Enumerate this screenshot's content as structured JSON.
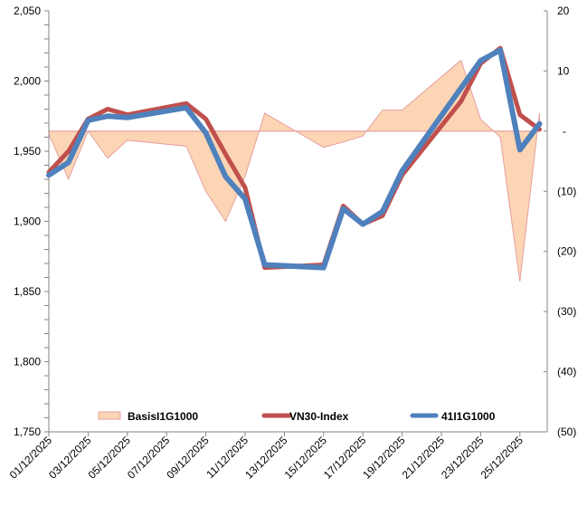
{
  "chart_data": {
    "type": "line",
    "title": "",
    "x": [
      "01/12/2025",
      "02/12/2025",
      "03/12/2025",
      "04/12/2025",
      "05/12/2025",
      "08/12/2025",
      "09/12/2025",
      "10/12/2025",
      "11/12/2025",
      "12/12/2025",
      "15/12/2025",
      "16/12/2025",
      "17/12/2025",
      "18/12/2025",
      "19/12/2025",
      "22/12/2025",
      "23/12/2025",
      "24/12/2025",
      "25/12/2025",
      "26/12/2025"
    ],
    "x_day_index": [
      0,
      1,
      2,
      3,
      4,
      7,
      8,
      9,
      10,
      11,
      14,
      15,
      16,
      17,
      18,
      21,
      22,
      23,
      24,
      25
    ],
    "x_tick_labels": [
      "01/12/2025",
      "03/12/2025",
      "05/12/2025",
      "07/12/2025",
      "09/12/2025",
      "11/12/2025",
      "13/12/2025",
      "15/12/2025",
      "17/12/2025",
      "19/12/2025",
      "21/12/2025",
      "23/12/2025",
      "25/12/2025"
    ],
    "y_left": {
      "ylim": [
        1750,
        2050
      ],
      "ticks": [
        "1,750",
        "1,800",
        "1,850",
        "1,900",
        "1,950",
        "2,000",
        "2,050"
      ]
    },
    "y_right": {
      "ylim": [
        -50,
        20
      ],
      "ticks": [
        "(50)",
        "(40)",
        "(30)",
        "(20)",
        "(10)",
        "-",
        "10",
        "20"
      ]
    },
    "series": [
      {
        "name": "BasisI1G1000",
        "axis": "right",
        "type": "area",
        "color": "#fcd5b4",
        "values": [
          -0.5,
          -8,
          0,
          -4.5,
          -1.5,
          -2.5,
          -10,
          -15,
          -7.5,
          3,
          -2.7,
          -1.8,
          -0.8,
          3.5,
          3.5,
          11.8,
          2,
          -1,
          -25,
          3
        ]
      },
      {
        "name": "VN30-Index",
        "axis": "left",
        "type": "line",
        "color": "#c0504d",
        "values": [
          1935,
          1950,
          1973,
          1980,
          1976,
          1984,
          1973,
          1948,
          1924,
          1867,
          1869,
          1911,
          1898,
          1904,
          1933,
          1985.5,
          2012.5,
          2023.5,
          1976,
          1965.5
        ]
      },
      {
        "name": "41I1G1000",
        "axis": "left",
        "type": "line",
        "color": "#4f81bd",
        "values": [
          1933,
          1942,
          1972,
          1975,
          1974,
          1981,
          1963,
          1932,
          1916,
          1869,
          1867,
          1909,
          1898,
          1907,
          1936,
          1995,
          2014.5,
          2022,
          1951,
          1969.5
        ]
      }
    ],
    "legend": "bottom",
    "grid": false
  }
}
